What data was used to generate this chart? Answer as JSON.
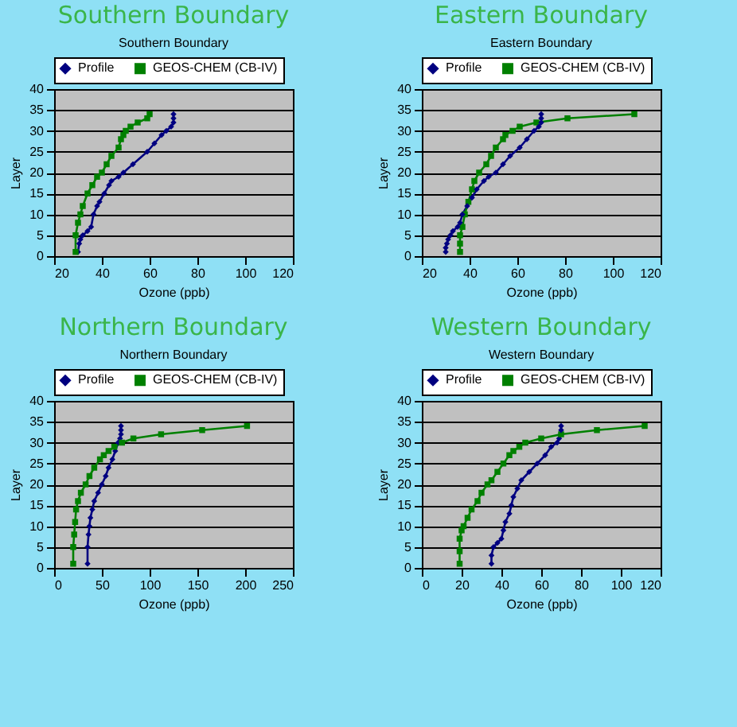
{
  "chart_data": [
    {
      "type": "line",
      "title": "Southern Boundary",
      "subtitle": "Southern Boundary",
      "xlabel": "Ozone (ppb)",
      "ylabel": "Layer",
      "xlim": [
        20,
        120
      ],
      "xticks": [
        20,
        40,
        60,
        80,
        100,
        120
      ],
      "ylim": [
        0,
        40
      ],
      "yticks": [
        0,
        5,
        10,
        15,
        20,
        25,
        30,
        35,
        40
      ],
      "grid": "y",
      "legend": "top",
      "series": [
        {
          "name": "Profile",
          "color": "#000080",
          "marker": "diamond",
          "x": [
            30,
            30.5,
            31,
            32,
            34,
            35.5,
            36.5,
            38,
            39,
            41,
            43,
            44,
            47,
            49,
            53,
            59,
            62,
            65,
            67,
            69,
            70,
            70,
            70
          ],
          "values": [
            1,
            3,
            4,
            5,
            6,
            7,
            10,
            12,
            13,
            15,
            17,
            18,
            19,
            20,
            22,
            25,
            27,
            29,
            30,
            31,
            32,
            33,
            34
          ]
        },
        {
          "name": "GEOS-CHEM (CB-IV)",
          "color": "#008000",
          "marker": "square",
          "x": [
            29,
            29,
            30,
            31,
            32,
            34,
            36,
            38,
            40,
            42,
            44,
            47,
            48,
            49,
            50,
            52,
            55,
            59,
            60
          ],
          "values": [
            1,
            5,
            8,
            10,
            12,
            15,
            17,
            19,
            20,
            22,
            24,
            26,
            28,
            29,
            30,
            31,
            32,
            33,
            34
          ]
        }
      ]
    },
    {
      "type": "line",
      "title": "Eastern Boundary",
      "subtitle": "Eastern Boundary",
      "xlabel": "Ozone (ppb)",
      "ylabel": "Layer",
      "xlim": [
        20,
        120
      ],
      "xticks": [
        20,
        40,
        60,
        80,
        100,
        120
      ],
      "ylim": [
        0,
        40
      ],
      "yticks": [
        0,
        5,
        10,
        15,
        20,
        25,
        30,
        35,
        40
      ],
      "grid": "y",
      "legend": "top",
      "series": [
        {
          "name": "Profile",
          "color": "#000080",
          "marker": "diamond",
          "x": [
            30,
            30,
            30.5,
            31,
            32,
            33,
            35,
            36,
            37,
            39,
            41,
            43,
            46,
            48,
            51,
            54,
            57,
            61,
            64,
            67,
            69,
            70,
            70,
            70
          ],
          "values": [
            1,
            2,
            3,
            4,
            5,
            6,
            7,
            8,
            10,
            12,
            14,
            16,
            18,
            19,
            20,
            22,
            24,
            26,
            28,
            30,
            31,
            32,
            33,
            34
          ]
        },
        {
          "name": "GEOS-CHEM (CB-IV)",
          "color": "#008000",
          "marker": "square",
          "x": [
            36,
            36,
            36,
            37,
            38,
            39.5,
            41,
            42,
            44,
            47,
            49,
            51,
            54,
            55,
            58,
            61,
            68,
            81,
            109
          ],
          "values": [
            1,
            3,
            5,
            7,
            10,
            13,
            16,
            18,
            20,
            22,
            24,
            26,
            28,
            29,
            30,
            31,
            32,
            33,
            34
          ]
        }
      ]
    },
    {
      "type": "line",
      "title": "Northern Boundary",
      "subtitle": "Northern Boundary",
      "xlabel": "Ozone (ppb)",
      "ylabel": "Layer",
      "xlim": [
        0,
        250
      ],
      "xticks": [
        0,
        50,
        100,
        150,
        200,
        250
      ],
      "ylim": [
        0,
        40
      ],
      "yticks": [
        0,
        5,
        10,
        15,
        20,
        25,
        30,
        35,
        40
      ],
      "grid": "y",
      "legend": "top",
      "series": [
        {
          "name": "Profile",
          "color": "#000080",
          "marker": "diamond",
          "x": [
            35,
            35,
            36,
            37,
            38,
            40,
            42,
            46,
            50,
            54,
            57,
            61,
            64,
            67,
            69,
            70,
            70,
            70
          ],
          "values": [
            1,
            5,
            8,
            10,
            12,
            14,
            16,
            18,
            20,
            22,
            24,
            26,
            28,
            30,
            31,
            32,
            33,
            34
          ]
        },
        {
          "name": "GEOS-CHEM (CB-IV)",
          "color": "#008000",
          "marker": "square",
          "x": [
            20,
            20,
            21,
            22,
            23,
            25,
            28,
            33,
            37,
            42,
            48,
            52,
            57,
            63,
            71,
            83,
            112,
            155,
            202
          ],
          "values": [
            1,
            5,
            8,
            11,
            14,
            16,
            18,
            20,
            22,
            24,
            26,
            27,
            28,
            29,
            30,
            31,
            32,
            33,
            34
          ]
        }
      ]
    },
    {
      "type": "line",
      "title": "Western Boundary",
      "subtitle": "Western Boundary",
      "xlabel": "Ozone (ppb)",
      "ylabel": "Layer",
      "xlim": [
        0,
        120
      ],
      "xticks": [
        0,
        20,
        40,
        60,
        80,
        100,
        120
      ],
      "ylim": [
        0,
        40
      ],
      "yticks": [
        0,
        5,
        10,
        15,
        20,
        25,
        30,
        35,
        40
      ],
      "grid": "y",
      "legend": "top",
      "series": [
        {
          "name": "Profile",
          "color": "#000080",
          "marker": "diamond",
          "x": [
            35,
            35,
            36,
            38,
            40,
            41,
            42,
            44,
            45,
            46,
            48,
            50,
            54,
            58,
            62,
            65,
            68,
            69,
            70,
            70,
            70
          ],
          "values": [
            1,
            3,
            5,
            6,
            7,
            9,
            11,
            13,
            15,
            17,
            19,
            21,
            23,
            25,
            27,
            29,
            30,
            31,
            32,
            33,
            34
          ]
        },
        {
          "name": "GEOS-CHEM (CB-IV)",
          "color": "#008000",
          "marker": "square",
          "x": [
            19,
            19,
            19,
            20,
            21,
            23,
            25,
            28,
            30,
            33,
            35,
            38,
            41,
            44,
            46,
            49,
            52,
            60,
            70,
            88,
            112
          ],
          "values": [
            1,
            4,
            7,
            9,
            10,
            12,
            14,
            16,
            18,
            20,
            21,
            23,
            25,
            27,
            28,
            29,
            30,
            31,
            32,
            33,
            34
          ]
        }
      ]
    }
  ]
}
